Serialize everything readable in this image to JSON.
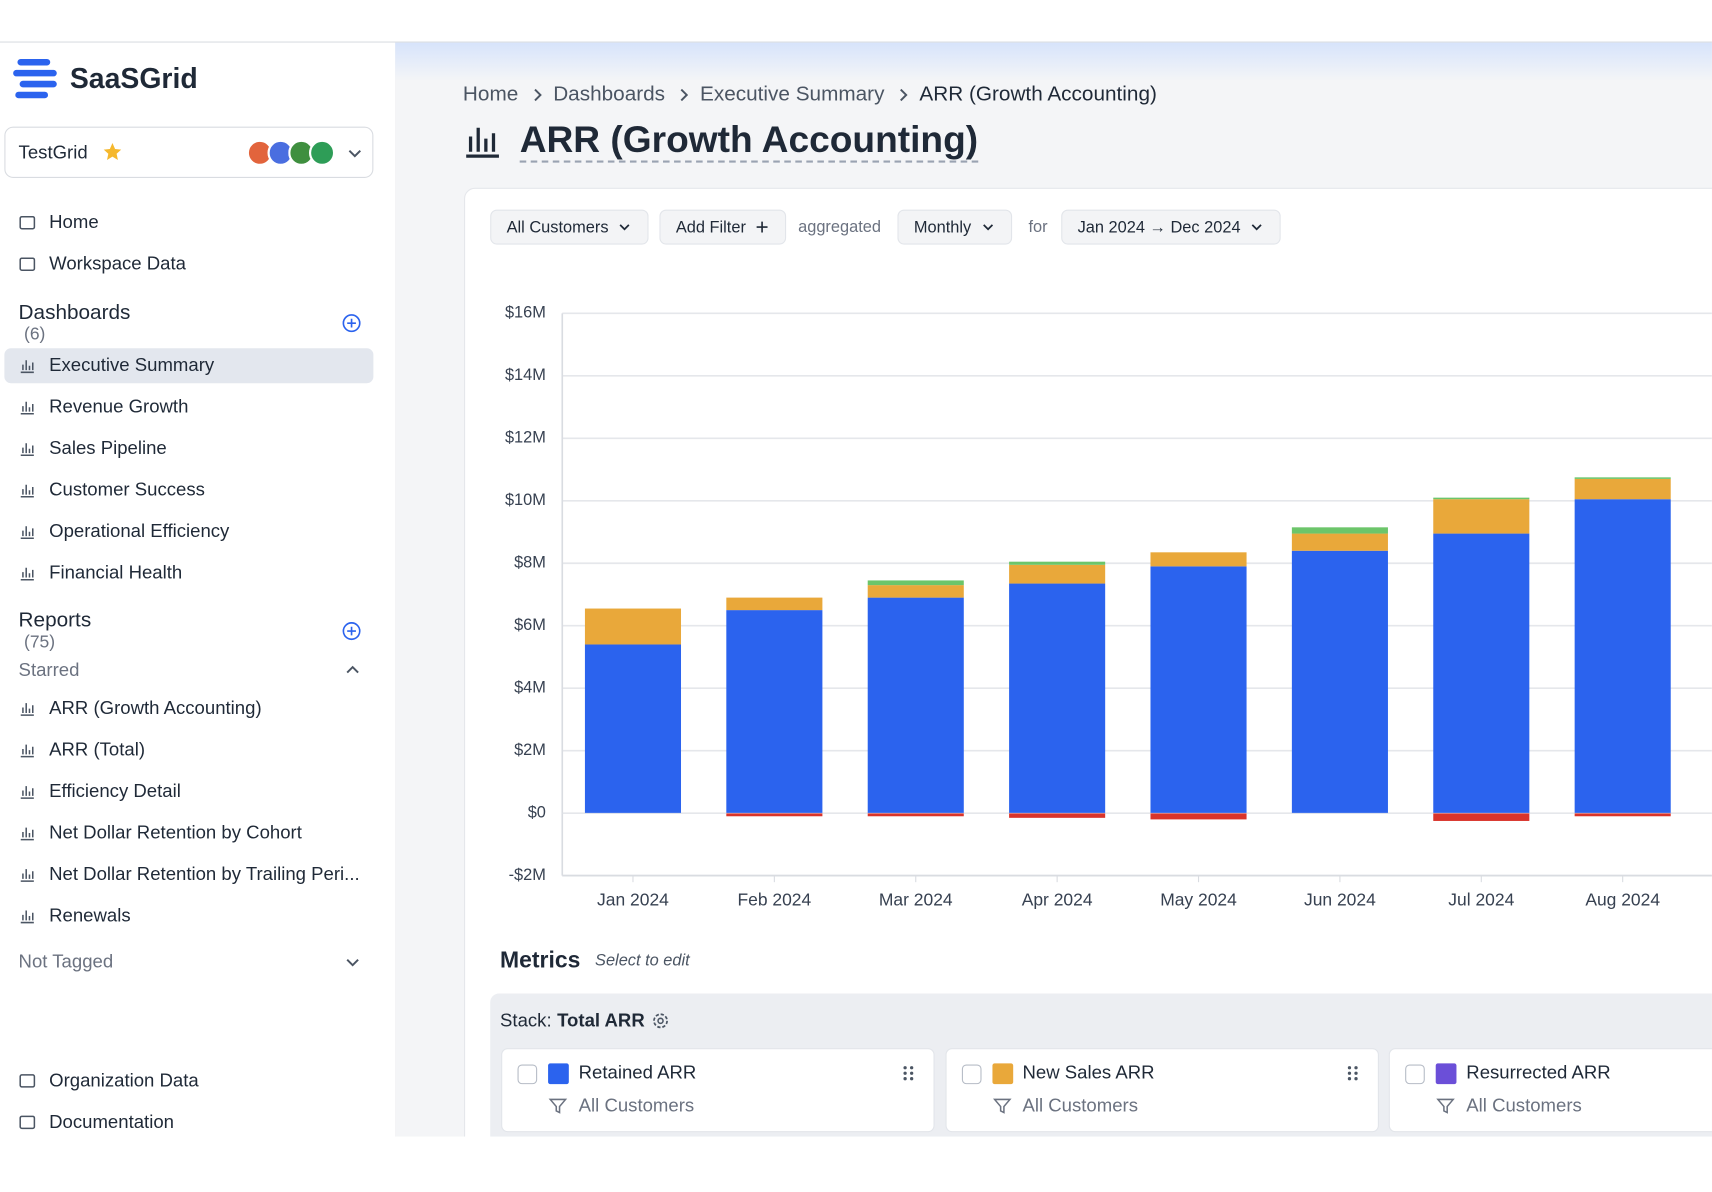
{
  "sidebar": {
    "brand": "SaaSGrid",
    "workspace": "TestGrid",
    "nav": [
      "Home",
      "Workspace Data"
    ],
    "dashboards_title": "Dashboards",
    "dashboards_count": "(6)",
    "dashboards": [
      "Executive Summary",
      "Revenue Growth",
      "Sales Pipeline",
      "Customer Success",
      "Operational Efficiency",
      "Financial Health"
    ],
    "reports_title": "Reports",
    "reports_count": "(75)",
    "starred": "Starred",
    "reports": [
      "ARR (Growth Accounting)",
      "ARR (Total)",
      "Efficiency Detail",
      "Net Dollar Retention by Cohort",
      "Net Dollar Retention by Trailing Peri...",
      "Renewals"
    ],
    "not_tagged": "Not Tagged",
    "footer": [
      "Organization Data",
      "Documentation"
    ]
  },
  "breadcrumb": [
    "Home",
    "Dashboards",
    "Executive Summary",
    "ARR (Growth Accounting)"
  ],
  "page_title": "ARR (Growth Accounting)",
  "filters": {
    "customers": "All Customers",
    "add_filter": "Add Filter",
    "aggregated": "aggregated",
    "period": "Monthly",
    "for": "for",
    "range": "Jan 2024 → Dec 2024"
  },
  "chart_data": {
    "type": "bar",
    "stacked": true,
    "categories": [
      "Jan 2024",
      "Feb 2024",
      "Mar 2024",
      "Apr 2024",
      "May 2024",
      "Jun 2024",
      "Jul 2024",
      "Aug 2024"
    ],
    "series": [
      {
        "name": "Retained ARR",
        "color": "#2b63ee",
        "values": [
          5.4,
          6.5,
          6.9,
          7.35,
          7.9,
          8.4,
          8.95,
          10.05
        ]
      },
      {
        "name": "New Sales ARR",
        "color": "#e9a83a",
        "values": [
          1.15,
          0.4,
          0.4,
          0.6,
          0.45,
          0.55,
          1.1,
          0.65
        ]
      },
      {
        "color": "#6cc56a",
        "values": [
          0,
          0,
          0.15,
          0.1,
          0,
          0.2,
          0.05,
          0.05
        ]
      },
      {
        "color": "#d9342b",
        "values": [
          0,
          -0.1,
          -0.1,
          -0.15,
          -0.2,
          0,
          -0.25,
          -0.1
        ]
      }
    ],
    "ylim": [
      -2,
      16
    ],
    "yticks": [
      {
        "value": -2,
        "label": "-$2M"
      },
      {
        "value": 0,
        "label": "$0"
      },
      {
        "value": 2,
        "label": "$2M"
      },
      {
        "value": 4,
        "label": "$4M"
      },
      {
        "value": 6,
        "label": "$6M"
      },
      {
        "value": 8,
        "label": "$8M"
      },
      {
        "value": 10,
        "label": "$10M"
      },
      {
        "value": 12,
        "label": "$12M"
      },
      {
        "value": 14,
        "label": "$14M"
      },
      {
        "value": 16,
        "label": "$16M"
      }
    ],
    "grid": true
  },
  "metrics": {
    "title": "Metrics",
    "hint": "Select to edit",
    "stack_label": "Stack:",
    "stack_name": "Total ARR",
    "cards": [
      {
        "name": "Retained ARR",
        "color": "#2b63ee",
        "filter": "All Customers"
      },
      {
        "name": "New Sales ARR",
        "color": "#e9a83a",
        "filter": "All Customers"
      },
      {
        "name": "Resurrected ARR",
        "color": "#6b4fd8",
        "filter": "All Customers"
      }
    ]
  }
}
